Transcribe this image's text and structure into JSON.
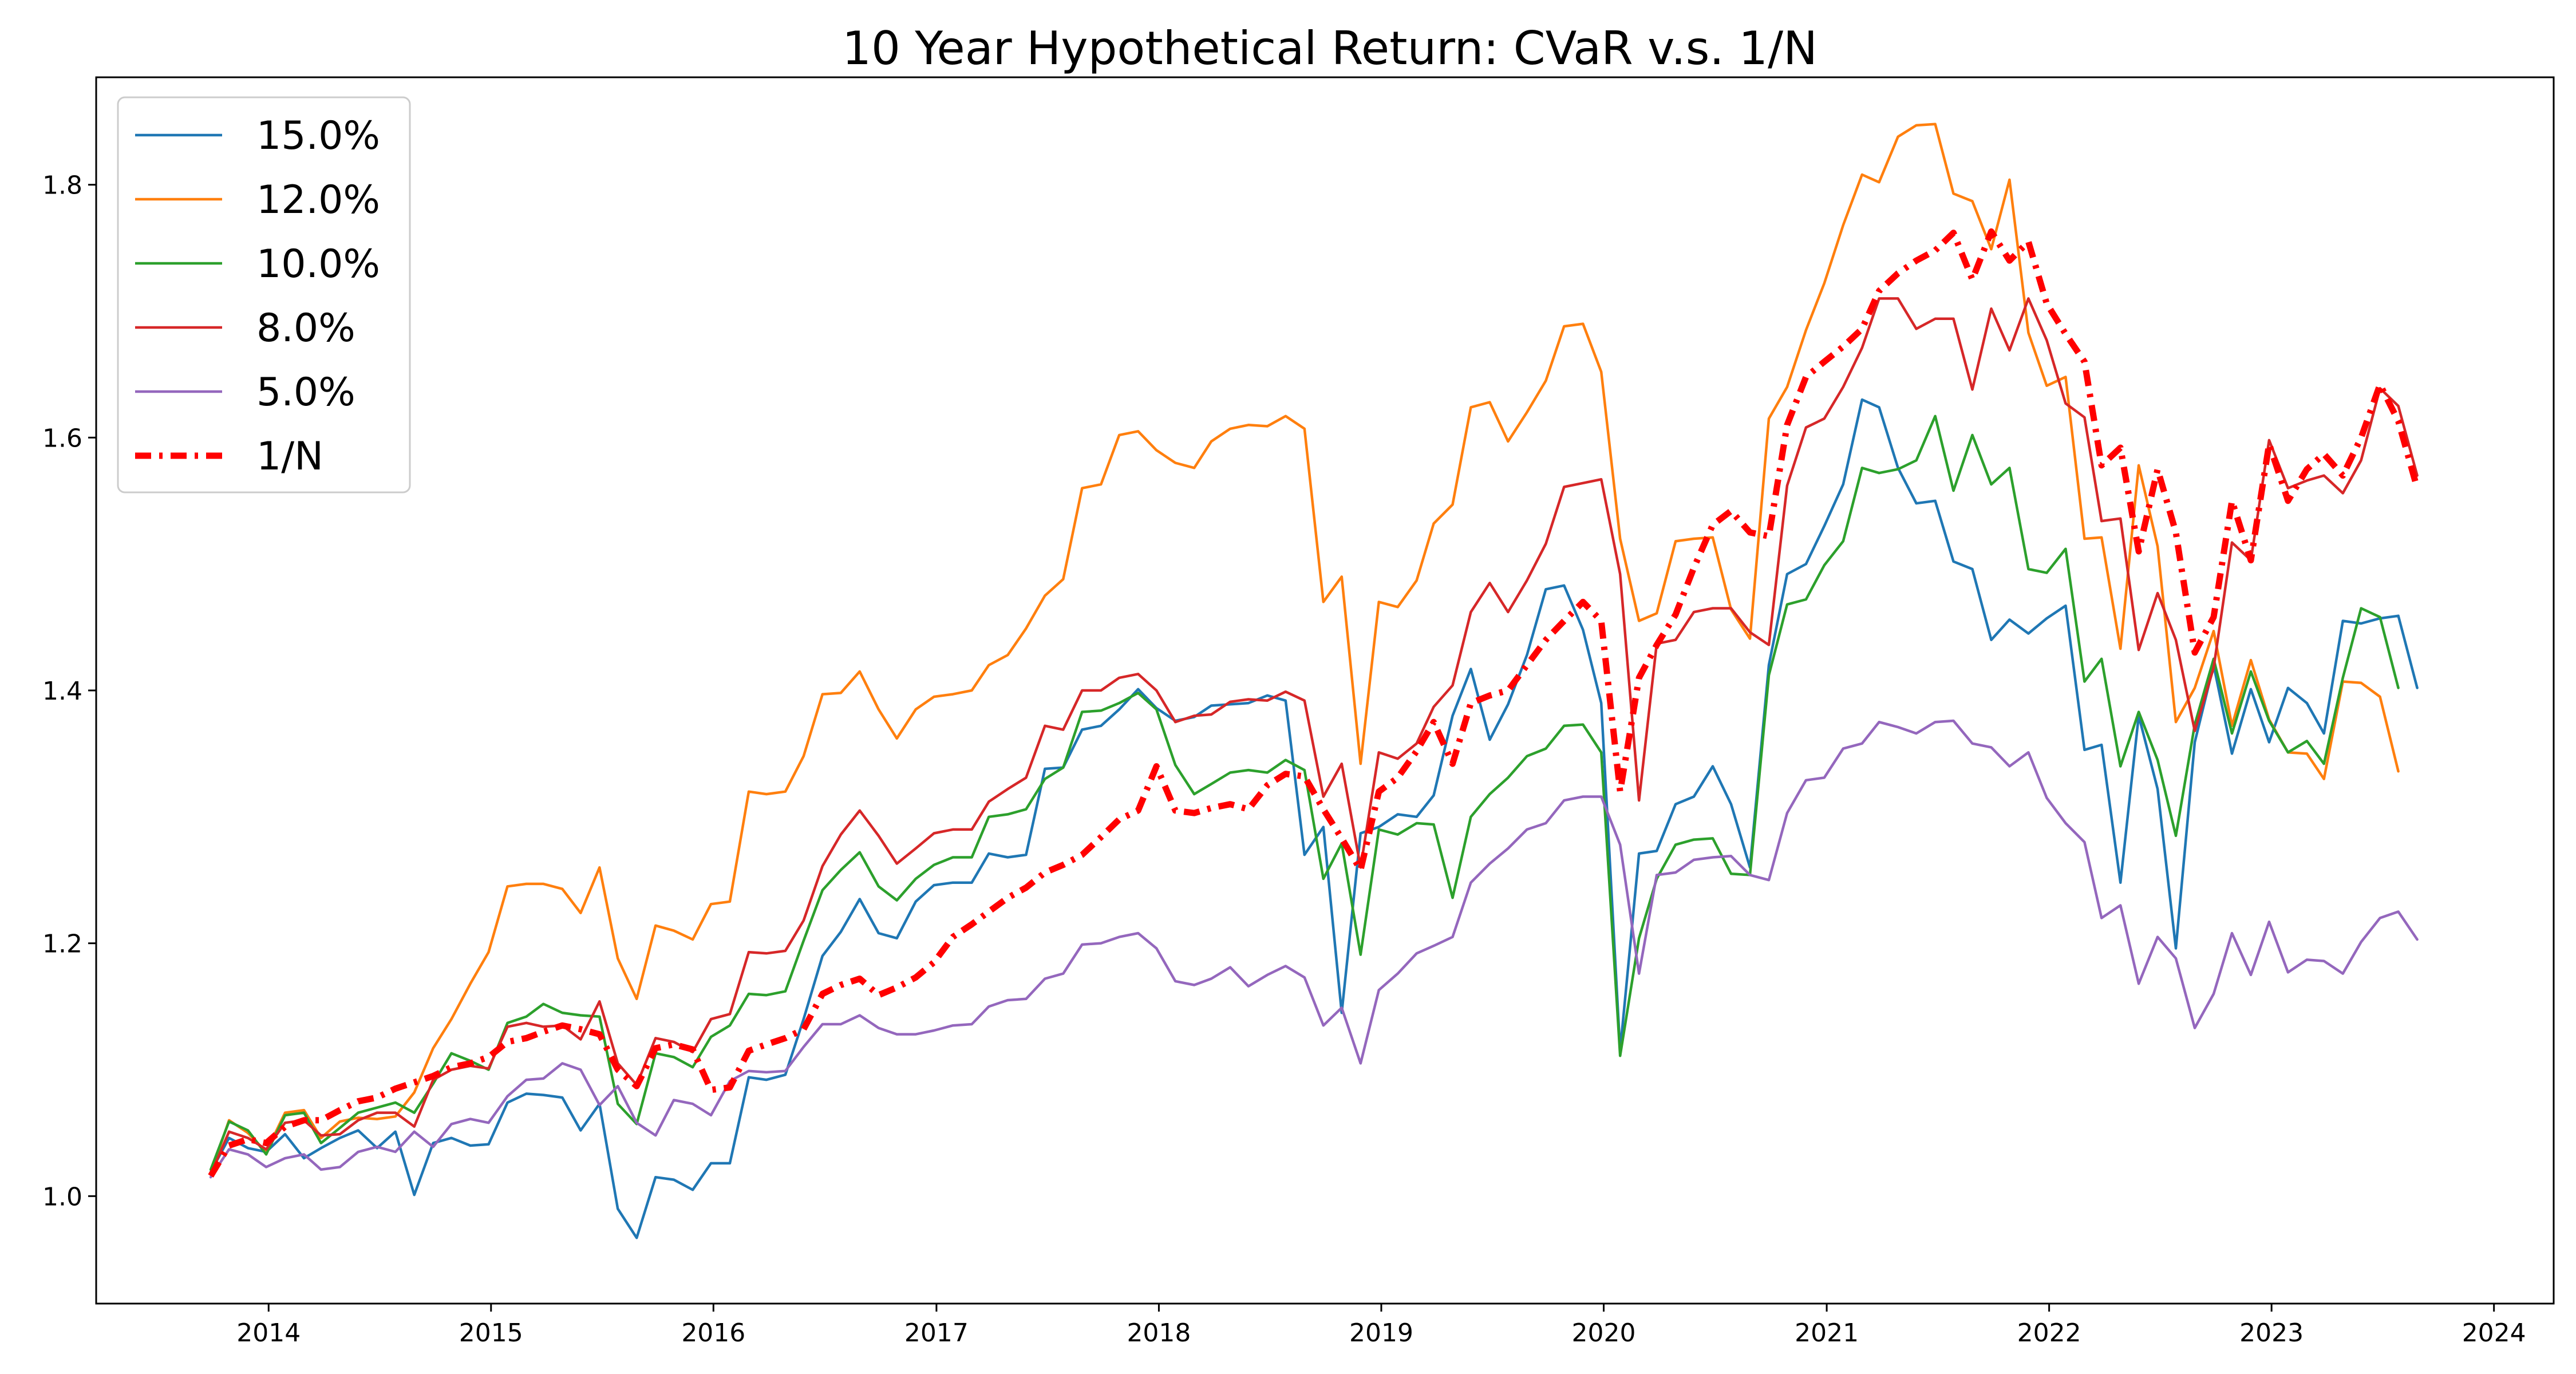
{
  "chart_data": {
    "type": "line",
    "title": "10 Year Hypothetical Return: CVaR v.s. 1/N",
    "xlabel": "",
    "ylabel": "",
    "xlim": [
      "2013-03-24",
      "2024-04-08"
    ],
    "ylim": [
      0.915,
      1.885
    ],
    "x_ticks": [
      "2014",
      "2015",
      "2016",
      "2017",
      "2018",
      "2019",
      "2020",
      "2021",
      "2022",
      "2023",
      "2024"
    ],
    "y_ticks": [
      "1.0",
      "1.2",
      "1.4",
      "1.6",
      "1.8"
    ],
    "legend_position": "top-left",
    "grid": false,
    "start_date": "2013-09",
    "interval": "monthly",
    "series": [
      {
        "name": "15.0%",
        "color": "#1f77b4",
        "width": 4.5,
        "dash": "",
        "values": [
          1.019,
          1.046,
          1.038,
          1.035,
          1.049,
          1.03,
          1.038,
          1.046,
          1.052,
          1.038,
          1.051,
          1.001,
          1.042,
          1.046,
          1.04,
          1.041,
          1.074,
          1.081,
          1.08,
          1.078,
          1.052,
          1.073,
          0.99,
          0.967,
          1.015,
          1.013,
          1.005,
          1.026,
          1.026,
          1.094,
          1.092,
          1.096,
          1.14,
          1.19,
          1.209,
          1.235,
          1.208,
          1.204,
          1.233,
          1.246,
          1.248,
          1.248,
          1.271,
          1.268,
          1.27,
          1.338,
          1.339,
          1.369,
          1.372,
          1.385,
          1.401,
          1.386,
          1.376,
          1.379,
          1.388,
          1.389,
          1.39,
          1.396,
          1.392,
          1.27,
          1.292,
          1.145,
          1.287,
          1.292,
          1.302,
          1.3,
          1.317,
          1.38,
          1.417,
          1.361,
          1.389,
          1.428,
          1.48,
          1.483,
          1.448,
          1.39,
          1.115,
          1.271,
          1.273,
          1.31,
          1.316,
          1.34,
          1.31,
          1.26,
          1.42,
          1.492,
          1.5,
          1.53,
          1.563,
          1.63,
          1.624,
          1.576,
          1.548,
          1.55,
          1.502,
          1.496,
          1.44,
          1.456,
          1.445,
          1.457,
          1.467,
          1.353,
          1.357,
          1.248,
          1.38,
          1.322,
          1.196,
          1.359,
          1.42,
          1.35,
          1.401,
          1.359,
          1.402,
          1.39,
          1.366,
          1.455,
          1.453,
          1.457,
          1.459,
          1.402
        ]
      },
      {
        "name": "12.0%",
        "color": "#ff7f0e",
        "width": 4.5,
        "dash": "",
        "values": [
          1.018,
          1.06,
          1.05,
          1.035,
          1.066,
          1.068,
          1.046,
          1.059,
          1.062,
          1.061,
          1.063,
          1.082,
          1.117,
          1.14,
          1.168,
          1.193,
          1.245,
          1.247,
          1.247,
          1.243,
          1.224,
          1.26,
          1.188,
          1.156,
          1.214,
          1.21,
          1.203,
          1.231,
          1.233,
          1.32,
          1.318,
          1.32,
          1.348,
          1.397,
          1.398,
          1.415,
          1.385,
          1.362,
          1.385,
          1.395,
          1.397,
          1.4,
          1.42,
          1.428,
          1.449,
          1.475,
          1.488,
          1.56,
          1.563,
          1.602,
          1.605,
          1.59,
          1.58,
          1.576,
          1.597,
          1.607,
          1.61,
          1.609,
          1.617,
          1.607,
          1.47,
          1.49,
          1.342,
          1.47,
          1.466,
          1.487,
          1.532,
          1.547,
          1.624,
          1.628,
          1.597,
          1.62,
          1.645,
          1.688,
          1.69,
          1.652,
          1.52,
          1.455,
          1.461,
          1.518,
          1.52,
          1.521,
          1.464,
          1.441,
          1.615,
          1.64,
          1.685,
          1.722,
          1.768,
          1.808,
          1.802,
          1.838,
          1.847,
          1.848,
          1.793,
          1.787,
          1.749,
          1.804,
          1.683,
          1.641,
          1.648,
          1.52,
          1.521,
          1.433,
          1.578,
          1.514,
          1.375,
          1.402,
          1.447,
          1.372,
          1.424,
          1.377,
          1.351,
          1.35,
          1.33,
          1.407,
          1.406,
          1.395,
          1.336
        ]
      },
      {
        "name": "10.0%",
        "color": "#2ca02c",
        "width": 4.5,
        "dash": "",
        "values": [
          1.021,
          1.059,
          1.052,
          1.033,
          1.064,
          1.066,
          1.042,
          1.054,
          1.066,
          1.07,
          1.074,
          1.066,
          1.089,
          1.113,
          1.107,
          1.1,
          1.137,
          1.142,
          1.152,
          1.145,
          1.143,
          1.142,
          1.073,
          1.057,
          1.113,
          1.11,
          1.102,
          1.126,
          1.135,
          1.16,
          1.159,
          1.162,
          1.202,
          1.242,
          1.258,
          1.272,
          1.245,
          1.234,
          1.251,
          1.262,
          1.268,
          1.268,
          1.3,
          1.302,
          1.306,
          1.33,
          1.339,
          1.383,
          1.384,
          1.39,
          1.398,
          1.385,
          1.341,
          1.318,
          1.326,
          1.335,
          1.337,
          1.335,
          1.345,
          1.337,
          1.251,
          1.279,
          1.191,
          1.29,
          1.286,
          1.295,
          1.294,
          1.236,
          1.3,
          1.318,
          1.331,
          1.348,
          1.354,
          1.372,
          1.373,
          1.351,
          1.111,
          1.204,
          1.251,
          1.278,
          1.282,
          1.283,
          1.255,
          1.254,
          1.412,
          1.468,
          1.472,
          1.499,
          1.518,
          1.576,
          1.572,
          1.575,
          1.582,
          1.617,
          1.558,
          1.602,
          1.563,
          1.576,
          1.496,
          1.493,
          1.512,
          1.407,
          1.425,
          1.34,
          1.383,
          1.345,
          1.285,
          1.373,
          1.425,
          1.366,
          1.415,
          1.376,
          1.351,
          1.36,
          1.342,
          1.41,
          1.465,
          1.458,
          1.402
        ]
      },
      {
        "name": "8.0%",
        "color": "#d62728",
        "width": 4.5,
        "dash": "",
        "values": [
          1.017,
          1.051,
          1.046,
          1.037,
          1.058,
          1.06,
          1.048,
          1.049,
          1.06,
          1.066,
          1.066,
          1.055,
          1.092,
          1.1,
          1.103,
          1.101,
          1.134,
          1.137,
          1.134,
          1.135,
          1.124,
          1.154,
          1.105,
          1.088,
          1.125,
          1.122,
          1.114,
          1.14,
          1.144,
          1.193,
          1.192,
          1.194,
          1.218,
          1.261,
          1.286,
          1.305,
          1.285,
          1.263,
          1.275,
          1.287,
          1.29,
          1.29,
          1.312,
          1.322,
          1.331,
          1.372,
          1.369,
          1.4,
          1.4,
          1.41,
          1.413,
          1.4,
          1.375,
          1.38,
          1.381,
          1.391,
          1.393,
          1.392,
          1.399,
          1.392,
          1.316,
          1.342,
          1.26,
          1.351,
          1.346,
          1.358,
          1.387,
          1.404,
          1.462,
          1.485,
          1.462,
          1.487,
          1.516,
          1.561,
          1.564,
          1.567,
          1.492,
          1.313,
          1.437,
          1.44,
          1.462,
          1.465,
          1.465,
          1.446,
          1.436,
          1.562,
          1.608,
          1.615,
          1.64,
          1.671,
          1.71,
          1.71,
          1.686,
          1.694,
          1.694,
          1.638,
          1.702,
          1.669,
          1.71,
          1.677,
          1.627,
          1.616,
          1.534,
          1.536,
          1.432,
          1.477,
          1.44,
          1.368,
          1.418,
          1.517,
          1.503,
          1.598,
          1.56,
          1.566,
          1.57,
          1.556,
          1.582,
          1.639,
          1.625,
          1.57
        ]
      },
      {
        "name": "5.0%",
        "color": "#9467bd",
        "width": 4.5,
        "dash": "",
        "values": [
          1.015,
          1.037,
          1.033,
          1.023,
          1.03,
          1.033,
          1.021,
          1.023,
          1.035,
          1.039,
          1.035,
          1.051,
          1.039,
          1.057,
          1.061,
          1.058,
          1.079,
          1.092,
          1.093,
          1.105,
          1.1,
          1.072,
          1.087,
          1.058,
          1.048,
          1.076,
          1.073,
          1.064,
          1.091,
          1.099,
          1.098,
          1.099,
          1.118,
          1.136,
          1.136,
          1.143,
          1.133,
          1.128,
          1.128,
          1.131,
          1.135,
          1.136,
          1.15,
          1.155,
          1.156,
          1.172,
          1.176,
          1.199,
          1.2,
          1.205,
          1.208,
          1.196,
          1.17,
          1.167,
          1.172,
          1.181,
          1.166,
          1.175,
          1.182,
          1.173,
          1.135,
          1.149,
          1.105,
          1.163,
          1.176,
          1.192,
          1.198,
          1.205,
          1.248,
          1.263,
          1.275,
          1.29,
          1.295,
          1.313,
          1.316,
          1.316,
          1.278,
          1.176,
          1.254,
          1.256,
          1.266,
          1.268,
          1.269,
          1.254,
          1.25,
          1.303,
          1.329,
          1.331,
          1.354,
          1.358,
          1.375,
          1.371,
          1.366,
          1.375,
          1.376,
          1.358,
          1.355,
          1.34,
          1.351,
          1.315,
          1.295,
          1.28,
          1.22,
          1.23,
          1.168,
          1.205,
          1.188,
          1.133,
          1.16,
          1.208,
          1.175,
          1.217,
          1.177,
          1.187,
          1.186,
          1.176,
          1.201,
          1.22,
          1.225,
          1.203
        ]
      },
      {
        "name": "1/N",
        "color": "#ff0000",
        "width": 11,
        "dash": "28,14,6,14",
        "values": [
          1.016,
          1.04,
          1.045,
          1.042,
          1.055,
          1.06,
          1.06,
          1.068,
          1.075,
          1.078,
          1.085,
          1.09,
          1.095,
          1.102,
          1.105,
          1.11,
          1.122,
          1.125,
          1.13,
          1.135,
          1.132,
          1.128,
          1.1,
          1.087,
          1.117,
          1.12,
          1.116,
          1.084,
          1.086,
          1.115,
          1.12,
          1.125,
          1.132,
          1.16,
          1.167,
          1.172,
          1.159,
          1.165,
          1.173,
          1.185,
          1.205,
          1.215,
          1.225,
          1.236,
          1.244,
          1.256,
          1.262,
          1.27,
          1.284,
          1.298,
          1.305,
          1.34,
          1.305,
          1.303,
          1.307,
          1.31,
          1.306,
          1.325,
          1.334,
          1.332,
          1.306,
          1.283,
          1.258,
          1.32,
          1.331,
          1.352,
          1.375,
          1.342,
          1.39,
          1.396,
          1.4,
          1.42,
          1.44,
          1.455,
          1.47,
          1.455,
          1.32,
          1.41,
          1.436,
          1.46,
          1.497,
          1.531,
          1.542,
          1.525,
          1.522,
          1.61,
          1.648,
          1.66,
          1.672,
          1.686,
          1.716,
          1.73,
          1.74,
          1.748,
          1.762,
          1.725,
          1.763,
          1.74,
          1.755,
          1.706,
          1.682,
          1.66,
          1.578,
          1.592,
          1.51,
          1.575,
          1.525,
          1.43,
          1.458,
          1.55,
          1.503,
          1.595,
          1.55,
          1.575,
          1.587,
          1.57,
          1.6,
          1.642,
          1.613,
          1.56
        ]
      }
    ]
  }
}
